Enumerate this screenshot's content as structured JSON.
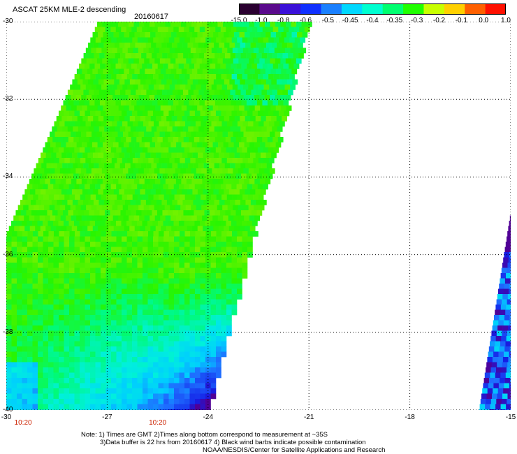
{
  "header": {
    "title": "ASCAT 25KM MLE-2 descending",
    "date": "20160617"
  },
  "colorbar": {
    "labels": [
      "-15.0",
      "-1.0",
      "-0.8",
      "-0.6",
      "-0.5",
      "-0.45",
      "-0.4",
      "-0.35",
      "-0.3",
      "-0.2",
      "-0.1",
      "0.0",
      "1.0"
    ],
    "colors": [
      "#2a0030",
      "#5a0a8c",
      "#3a10d8",
      "#1030ff",
      "#1a80ff",
      "#00d8ff",
      "#00ffd0",
      "#00ff70",
      "#20ff00",
      "#c8ff00",
      "#ffd000",
      "#ff6000",
      "#ff1000"
    ]
  },
  "axes": {
    "lat_labels": [
      "-30",
      "-32",
      "-34",
      "-36",
      "-38",
      "-40"
    ],
    "lon_labels": [
      "-30",
      "-27",
      "-24",
      "-21",
      "-18",
      "-15"
    ],
    "lat_range": [
      -40,
      -30
    ],
    "lon_range": [
      -30,
      -15
    ],
    "grid": "dotted"
  },
  "swath": {
    "times": [
      {
        "label": "10:20",
        "lon": -29.5
      },
      {
        "label": "10:20",
        "lon": -25.5
      }
    ]
  },
  "notes": {
    "line1": "Note: 1) Times are GMT 2)Times along bottom correspond to measurement at ~35S",
    "line2": "3)Data buffer is 22 hrs from 20160617 4) Black wind barbs indicate possible contamination",
    "line3": "NOAA/NESDIS/Center for Satellite Applications and Research"
  }
}
